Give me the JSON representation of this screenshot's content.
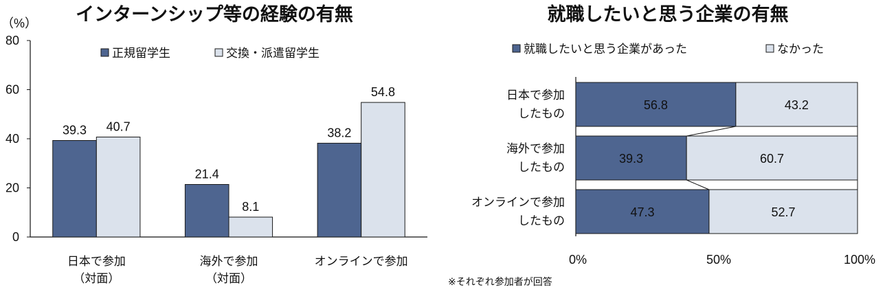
{
  "colors": {
    "dark": "#4e6590",
    "light": "#dbe2ec",
    "axis": "#111111",
    "stroke": "#1a1a1a"
  },
  "chart_data": [
    {
      "type": "bar",
      "title": "インターンシップ等の経験の有無",
      "yunit": "（%）",
      "ylim": [
        0,
        80
      ],
      "yticks": [
        "0",
        "20",
        "40",
        "60",
        "80"
      ],
      "categories": [
        [
          "日本で参加",
          "（対面）"
        ],
        [
          "海外で参加",
          "（対面）"
        ],
        [
          "オンラインで参加"
        ]
      ],
      "series": [
        {
          "name": "正規留学生",
          "values": [
            39.3,
            21.4,
            38.2
          ],
          "labels": [
            "39.3",
            "21.4",
            "38.2"
          ]
        },
        {
          "name": "交換・派遣留学生",
          "values": [
            40.7,
            8.1,
            54.8
          ],
          "labels": [
            "40.7",
            "8.1",
            "54.8"
          ]
        }
      ]
    },
    {
      "type": "bar",
      "orientation": "horizontal-stacked-100",
      "title": "就職したいと思う企業の有無",
      "categories": [
        [
          "日本で参加",
          "したもの"
        ],
        [
          "海外で参加",
          "したもの"
        ],
        [
          "オンラインで参加",
          "したもの"
        ]
      ],
      "series": [
        {
          "name": "就職したいと思う企業があった",
          "values": [
            56.8,
            39.3,
            47.3
          ],
          "labels": [
            "56.8",
            "39.3",
            "47.3"
          ]
        },
        {
          "name": "なかった",
          "values": [
            43.2,
            60.7,
            52.7
          ],
          "labels": [
            "43.2",
            "60.7",
            "52.7"
          ]
        }
      ],
      "xticks": [
        "0%",
        "50%",
        "100%"
      ],
      "note": "※それぞれ参加者が回答"
    }
  ]
}
